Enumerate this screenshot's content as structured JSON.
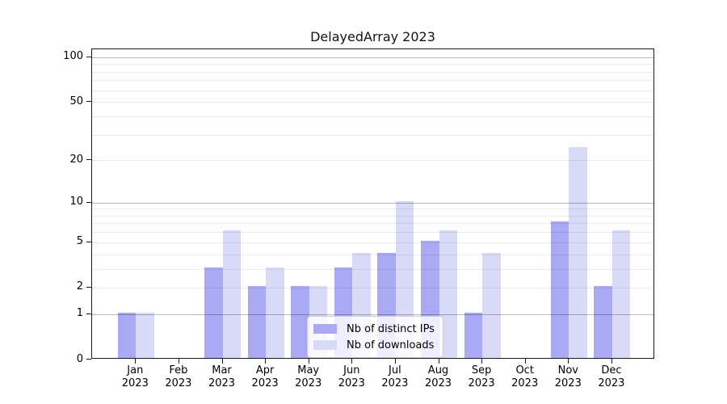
{
  "chart_data": {
    "type": "bar",
    "title": "DelayedArray 2023",
    "categories": [
      "Jan",
      "Feb",
      "Mar",
      "Apr",
      "May",
      "Jun",
      "Jul",
      "Aug",
      "Sep",
      "Oct",
      "Nov",
      "Dec"
    ],
    "year": "2023",
    "series": [
      {
        "name": "Nb of distinct IPs",
        "color": "#a9a9f4",
        "values": [
          1,
          0,
          3,
          2,
          2,
          3,
          4,
          5,
          1,
          0,
          7,
          2
        ]
      },
      {
        "name": "Nb of downloads",
        "color": "#d9d9f8",
        "values": [
          1,
          0,
          6,
          3,
          2,
          4,
          10,
          6,
          4,
          0,
          24,
          6
        ]
      }
    ],
    "y_axis": {
      "scale": "log1p",
      "tick_labels": [
        0,
        1,
        2,
        5,
        10,
        20,
        50,
        100
      ],
      "major_gridlines": [
        1,
        10,
        100
      ],
      "minor_gridlines": [
        2,
        3,
        4,
        5,
        6,
        7,
        8,
        9,
        20,
        30,
        40,
        50,
        60,
        70,
        80,
        90
      ],
      "ylim": [
        0,
        113
      ]
    },
    "legend": {
      "position": "lower center"
    },
    "grid": true
  }
}
